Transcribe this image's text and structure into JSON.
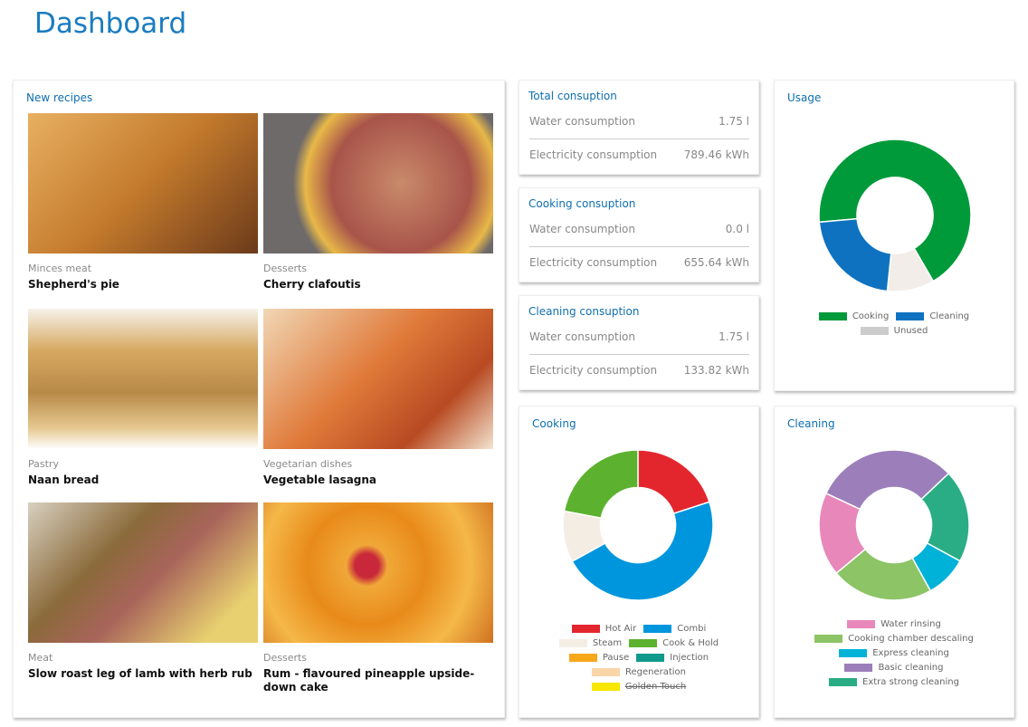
{
  "title": "Dashboard",
  "recipes": {
    "title": "New recipes",
    "items": [
      {
        "category": "Minces meat",
        "name": "Shepherd's pie",
        "img": "linear-gradient(135deg,#e8b062,#c47a2c 50%,#6b3a1a)"
      },
      {
        "category": "Desserts",
        "name": "Cherry clafoutis",
        "img": "radial-gradient(circle at 60% 50%,#c98a6a,#a8544a 45%,#e8b848 62%,#6f6a6a 70%)"
      },
      {
        "category": "Pastry",
        "name": "Naan bread",
        "img": "linear-gradient(180deg,#f6f2ea,#d6a860 30%,#b88a48 60%,#e6c890 85%,#fff)"
      },
      {
        "category": "Vegetarian dishes",
        "name": "Vegetable lasagna",
        "img": "linear-gradient(135deg,#f1d7b5,#e07a3a 45%,#b84a22 75%,#f3e4d0)"
      },
      {
        "category": "Meat",
        "name": "Slow roast leg of lamb with herb rub",
        "img": "linear-gradient(135deg,#d8d0c0,#8a6a3a 35%,#a8645a 55%,#e8d070 85%)"
      },
      {
        "category": "Desserts",
        "name": "Rum - flavoured pineapple upside-down cake",
        "img": "radial-gradient(circle at 45% 45%,#c8283a 8%,#f0a838 14%,#e88a1a 40%,#f5b848 70%,#d07020)"
      }
    ]
  },
  "consumption": [
    {
      "title": "Total consuption",
      "rows": [
        {
          "label": "Water consumption",
          "value": "1.75 l"
        },
        {
          "label": "Electricity consumption",
          "value": "789.46 kWh"
        }
      ]
    },
    {
      "title": "Cooking consuption",
      "rows": [
        {
          "label": "Water consumption",
          "value": "0.0 l"
        },
        {
          "label": "Electricity consumption",
          "value": "655.64 kWh"
        }
      ]
    },
    {
      "title": "Cleaning consuption",
      "rows": [
        {
          "label": "Water consumption",
          "value": "1.75 l"
        },
        {
          "label": "Electricity consumption",
          "value": "133.82 kWh"
        }
      ]
    }
  ],
  "chart_data": [
    {
      "type": "pie",
      "title": "Usage",
      "series": [
        {
          "name": "Cooking",
          "value": 68,
          "color": "#009a3a"
        },
        {
          "name": "Unused",
          "value": 10,
          "color": "#f2ede8"
        },
        {
          "name": "Cleaning",
          "value": 22,
          "color": "#0f72c0"
        }
      ],
      "legend": [
        {
          "name": "Cooking",
          "color": "#009a3a"
        },
        {
          "name": "Cleaning",
          "color": "#0f72c0"
        },
        {
          "name": "Unused",
          "color": "#cccccc"
        }
      ]
    },
    {
      "type": "pie",
      "title": "Cooking",
      "series": [
        {
          "name": "Hot Air",
          "value": 20,
          "color": "#e3262e"
        },
        {
          "name": "Combi",
          "value": 47,
          "color": "#0096dd"
        },
        {
          "name": "Steam",
          "value": 11,
          "color": "#f4ede4"
        },
        {
          "name": "Cook & Hold",
          "value": 22,
          "color": "#5cb22e"
        }
      ],
      "legend": [
        {
          "name": "Hot Air",
          "color": "#e3262e"
        },
        {
          "name": "Combi",
          "color": "#0096dd"
        },
        {
          "name": "Steam",
          "color": "#f4ede4"
        },
        {
          "name": "Cook & Hold",
          "color": "#5cb22e"
        },
        {
          "name": "Pause",
          "color": "#f6a81a"
        },
        {
          "name": "Injection",
          "color": "#0f9a8c"
        },
        {
          "name": "Regeneration",
          "color": "#f9d5a8"
        },
        {
          "name": "Golden Touch",
          "color": "#f7e600",
          "disabled": true
        }
      ]
    },
    {
      "type": "pie",
      "title": "Cleaning",
      "series": [
        {
          "name": "Basic cleaning",
          "value": 31,
          "color": "#9c7fba"
        },
        {
          "name": "Extra strong cleaning",
          "value": 20,
          "color": "#2aad85"
        },
        {
          "name": "Express cleaning",
          "value": 9,
          "color": "#00b2d8"
        },
        {
          "name": "Cooking chamber descaling",
          "value": 22,
          "color": "#8cc466"
        },
        {
          "name": "Water rinsing",
          "value": 18,
          "color": "#e888ba"
        }
      ],
      "legend": [
        {
          "name": "Water rinsing",
          "color": "#e888ba"
        },
        {
          "name": "Cooking chamber descaling",
          "color": "#8cc466"
        },
        {
          "name": "Express cleaning",
          "color": "#00b2d8"
        },
        {
          "name": "Basic cleaning",
          "color": "#9c7fba"
        },
        {
          "name": "Extra strong cleaning",
          "color": "#2aad85"
        }
      ]
    }
  ]
}
